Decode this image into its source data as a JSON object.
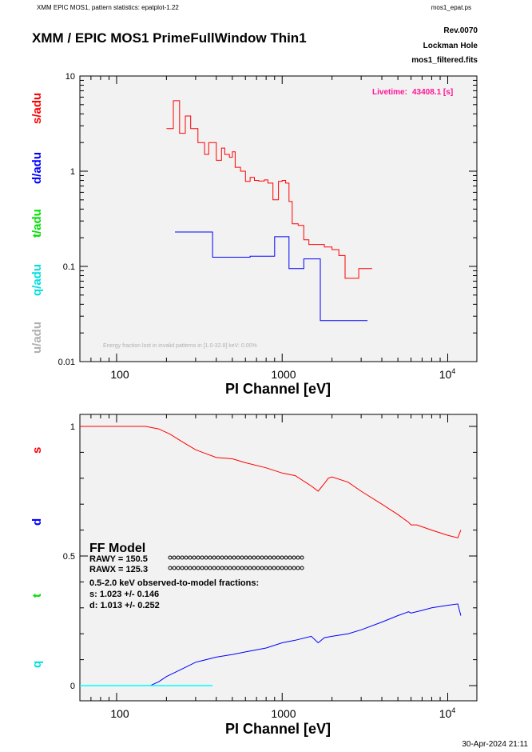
{
  "header": {
    "left": "XMM EPIC MOS1, pattern statistics: epatplot-1.22",
    "right": "mos1_epat.ps",
    "title": "XMM / EPIC MOS1 PrimeFullWindow Thin1",
    "rev": "Rev.0070",
    "target": "Lockman Hole",
    "file": "mos1_filtered.fits"
  },
  "footer": {
    "timestamp": "30-Apr-2024 21:11"
  },
  "colors": {
    "s": "#ff0000",
    "d": "#0000ff",
    "t": "#00ff00",
    "q": "#00ffff",
    "u": "#b0b0b0",
    "livetime": "#ff1493",
    "panel_bg": "#f2f2f2"
  },
  "chart_data": [
    {
      "type": "line",
      "title": "",
      "xlabel": "PI Channel [eV]",
      "xscale": "log",
      "yscale": "log",
      "xlim": [
        60,
        15000
      ],
      "ylim": [
        0.01,
        10
      ],
      "x_ticks": [
        "100",
        "1000",
        "10^4"
      ],
      "y_ticks": [
        "10",
        "1",
        "0.1",
        "0.01"
      ],
      "ylabels": [
        "s/adu",
        "d/adu",
        "t/adu",
        "q/adu",
        "u/adu"
      ],
      "livetime_label": "Livetime:",
      "livetime_value": "43408.1 [s]",
      "energy_note": "Energy fraction lost in invalid patterns in [1.0-32.8] keV:  0.00%",
      "series": [
        {
          "name": "s",
          "x": [
            200,
            220,
            240,
            260,
            280,
            310,
            340,
            360,
            400,
            430,
            450,
            480,
            500,
            520,
            560,
            600,
            640,
            680,
            720,
            780,
            820,
            880,
            950,
            1000,
            1050,
            1100,
            1150,
            1250,
            1350,
            1450,
            1600,
            1800,
            2000,
            2200,
            2400,
            2600,
            2900,
            3200
          ],
          "y": [
            2.8,
            5.5,
            2.5,
            3.8,
            2.8,
            2.0,
            1.5,
            2.0,
            1.3,
            1.75,
            1.5,
            1.4,
            1.6,
            1.1,
            1.0,
            0.78,
            0.86,
            0.8,
            0.79,
            0.81,
            0.75,
            0.5,
            0.78,
            0.8,
            0.75,
            0.48,
            0.28,
            0.27,
            0.19,
            0.17,
            0.17,
            0.16,
            0.15,
            0.13,
            0.075,
            0.075,
            0.095,
            0.095
          ]
        },
        {
          "name": "d",
          "x": [
            225,
            380,
            640,
            900,
            1100,
            1350,
            1700,
            2200,
            3000
          ],
          "y": [
            0.23,
            0.125,
            0.128,
            0.205,
            0.095,
            0.12,
            0.027,
            0.027,
            0.027
          ]
        }
      ]
    },
    {
      "type": "line",
      "title": "",
      "xlabel": "PI Channel [eV]",
      "xscale": "log",
      "xlim": [
        60,
        15000
      ],
      "ylim": [
        0,
        1.1
      ],
      "x_ticks": [
        "100",
        "1000",
        "10^4"
      ],
      "y_ticks": [
        "1",
        "0.5",
        "0"
      ],
      "ylabels": [
        "s",
        "d",
        "t",
        "q"
      ],
      "model": {
        "title": "FF Model",
        "rawy": "RAWY = 150.5",
        "rawx": "RAWX = 125.3",
        "fractions_title": "0.5-2.0 keV observed-to-model fractions:",
        "s_fraction": "s: 1.023 +/- 0.146",
        "d_fraction": "d: 1.013 +/- 0.252"
      },
      "series": [
        {
          "name": "s",
          "x": [
            60,
            150,
            180,
            210,
            250,
            300,
            400,
            500,
            600,
            800,
            1000,
            1200,
            1500,
            1650,
            1800,
            1900,
            2000,
            2500,
            3000,
            4000,
            5000,
            5800,
            6000,
            6500,
            8000,
            10000,
            11500,
            12000
          ],
          "y": [
            1.0,
            1.0,
            0.99,
            0.97,
            0.94,
            0.91,
            0.88,
            0.875,
            0.86,
            0.84,
            0.82,
            0.81,
            0.77,
            0.75,
            0.78,
            0.8,
            0.805,
            0.785,
            0.75,
            0.7,
            0.66,
            0.63,
            0.62,
            0.62,
            0.6,
            0.58,
            0.57,
            0.6
          ]
        },
        {
          "name": "d",
          "x": [
            60,
            160,
            180,
            200,
            250,
            300,
            400,
            500,
            600,
            800,
            1000,
            1200,
            1500,
            1650,
            1800,
            2000,
            2500,
            3000,
            4000,
            5000,
            5800,
            6000,
            7000,
            8000,
            10000,
            11500,
            12000
          ],
          "y": [
            0,
            0,
            0.015,
            0.035,
            0.065,
            0.09,
            0.11,
            0.12,
            0.13,
            0.145,
            0.165,
            0.175,
            0.19,
            0.165,
            0.185,
            0.19,
            0.2,
            0.215,
            0.245,
            0.27,
            0.285,
            0.28,
            0.29,
            0.3,
            0.31,
            0.315,
            0.27
          ]
        },
        {
          "name": "q",
          "x": [
            60,
            380
          ],
          "y": [
            0,
            0
          ]
        }
      ]
    }
  ]
}
